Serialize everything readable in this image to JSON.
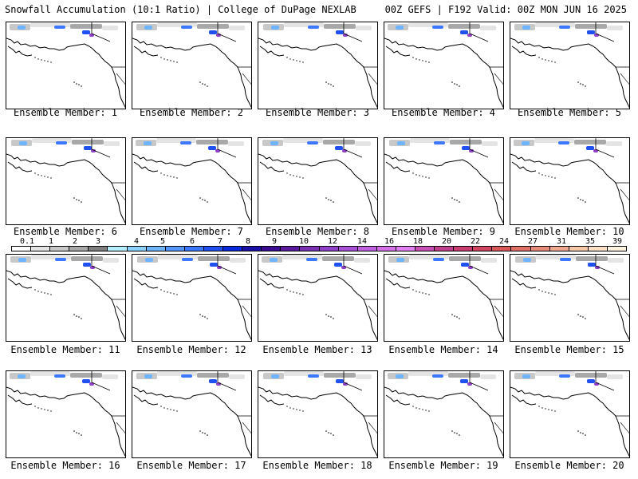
{
  "header": {
    "left": "Snowfall Accumulation (10:1 Ratio) | College of DuPage NEXLAB",
    "right": "00Z GEFS | F192 Valid: 00Z MON JUN 16 2025"
  },
  "panels": [
    {
      "label": "Ensemble Member: 1"
    },
    {
      "label": "Ensemble Member: 2"
    },
    {
      "label": "Ensemble Member: 3"
    },
    {
      "label": "Ensemble Member: 4"
    },
    {
      "label": "Ensemble Member: 5"
    },
    {
      "label": "Ensemble Member: 6"
    },
    {
      "label": "Ensemble Member: 7"
    },
    {
      "label": "Ensemble Member: 8"
    },
    {
      "label": "Ensemble Member: 9"
    },
    {
      "label": "Ensemble Member: 10"
    },
    {
      "label": "Ensemble Member: 11"
    },
    {
      "label": "Ensemble Member: 12"
    },
    {
      "label": "Ensemble Member: 13"
    },
    {
      "label": "Ensemble Member: 14"
    },
    {
      "label": "Ensemble Member: 15"
    },
    {
      "label": "Ensemble Member: 16"
    },
    {
      "label": "Ensemble Member: 17"
    },
    {
      "label": "Ensemble Member: 18"
    },
    {
      "label": "Ensemble Member: 19"
    },
    {
      "label": "Ensemble Member: 20"
    }
  ],
  "color_scale": {
    "labels": [
      "0.1",
      "1",
      "2",
      "3",
      "4",
      "5",
      "6",
      "7",
      "8",
      "9",
      "10",
      "12",
      "14",
      "16",
      "18",
      "20",
      "22",
      "24",
      "27",
      "31",
      "35",
      "39"
    ],
    "colors": [
      "#ffffff",
      "#e4e4e4",
      "#c8c8c8",
      "#a8a8a8",
      "#7f7f7f",
      "#b4f0ff",
      "#8cd2ff",
      "#6eb4ff",
      "#5596ff",
      "#3c78ff",
      "#2050f0",
      "#0a28dc",
      "#1a10a8",
      "#3a0a90",
      "#5a1aa0",
      "#7a30b4",
      "#9040c8",
      "#a850d8",
      "#c060e0",
      "#d470e8",
      "#e080f0",
      "#c84fb4",
      "#c0408c",
      "#c83c70",
      "#d04460",
      "#d85858",
      "#e07064",
      "#e88a78",
      "#f0a890",
      "#f6c8a8",
      "#fbe0c4",
      "#fff3e0"
    ]
  }
}
